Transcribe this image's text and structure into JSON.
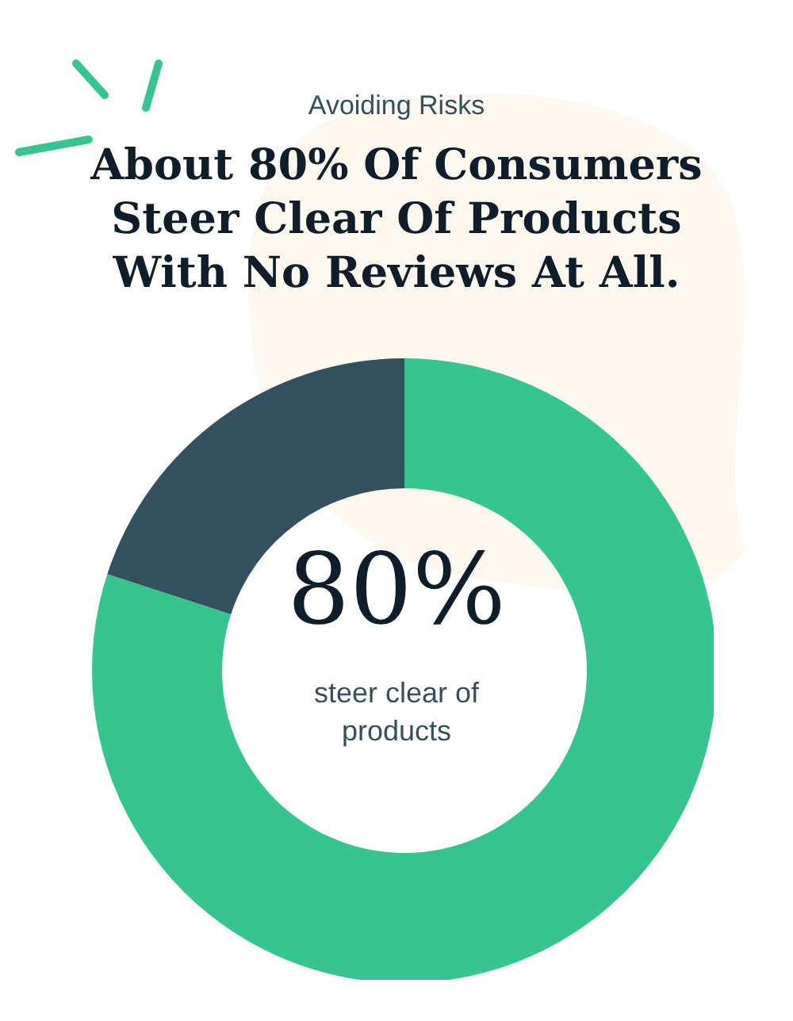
{
  "chart_data": {
    "type": "donut",
    "subtitle": "Avoiding Risks",
    "title": "About 80% Of Consumers Steer Clear Of Products With No Reviews At All.",
    "categories": [
      null,
      null
    ],
    "values": [
      80,
      20
    ],
    "colors": [
      "#36c48f",
      "#33505f"
    ],
    "annotations": [
      "80%",
      "steer clear of products"
    ]
  }
}
